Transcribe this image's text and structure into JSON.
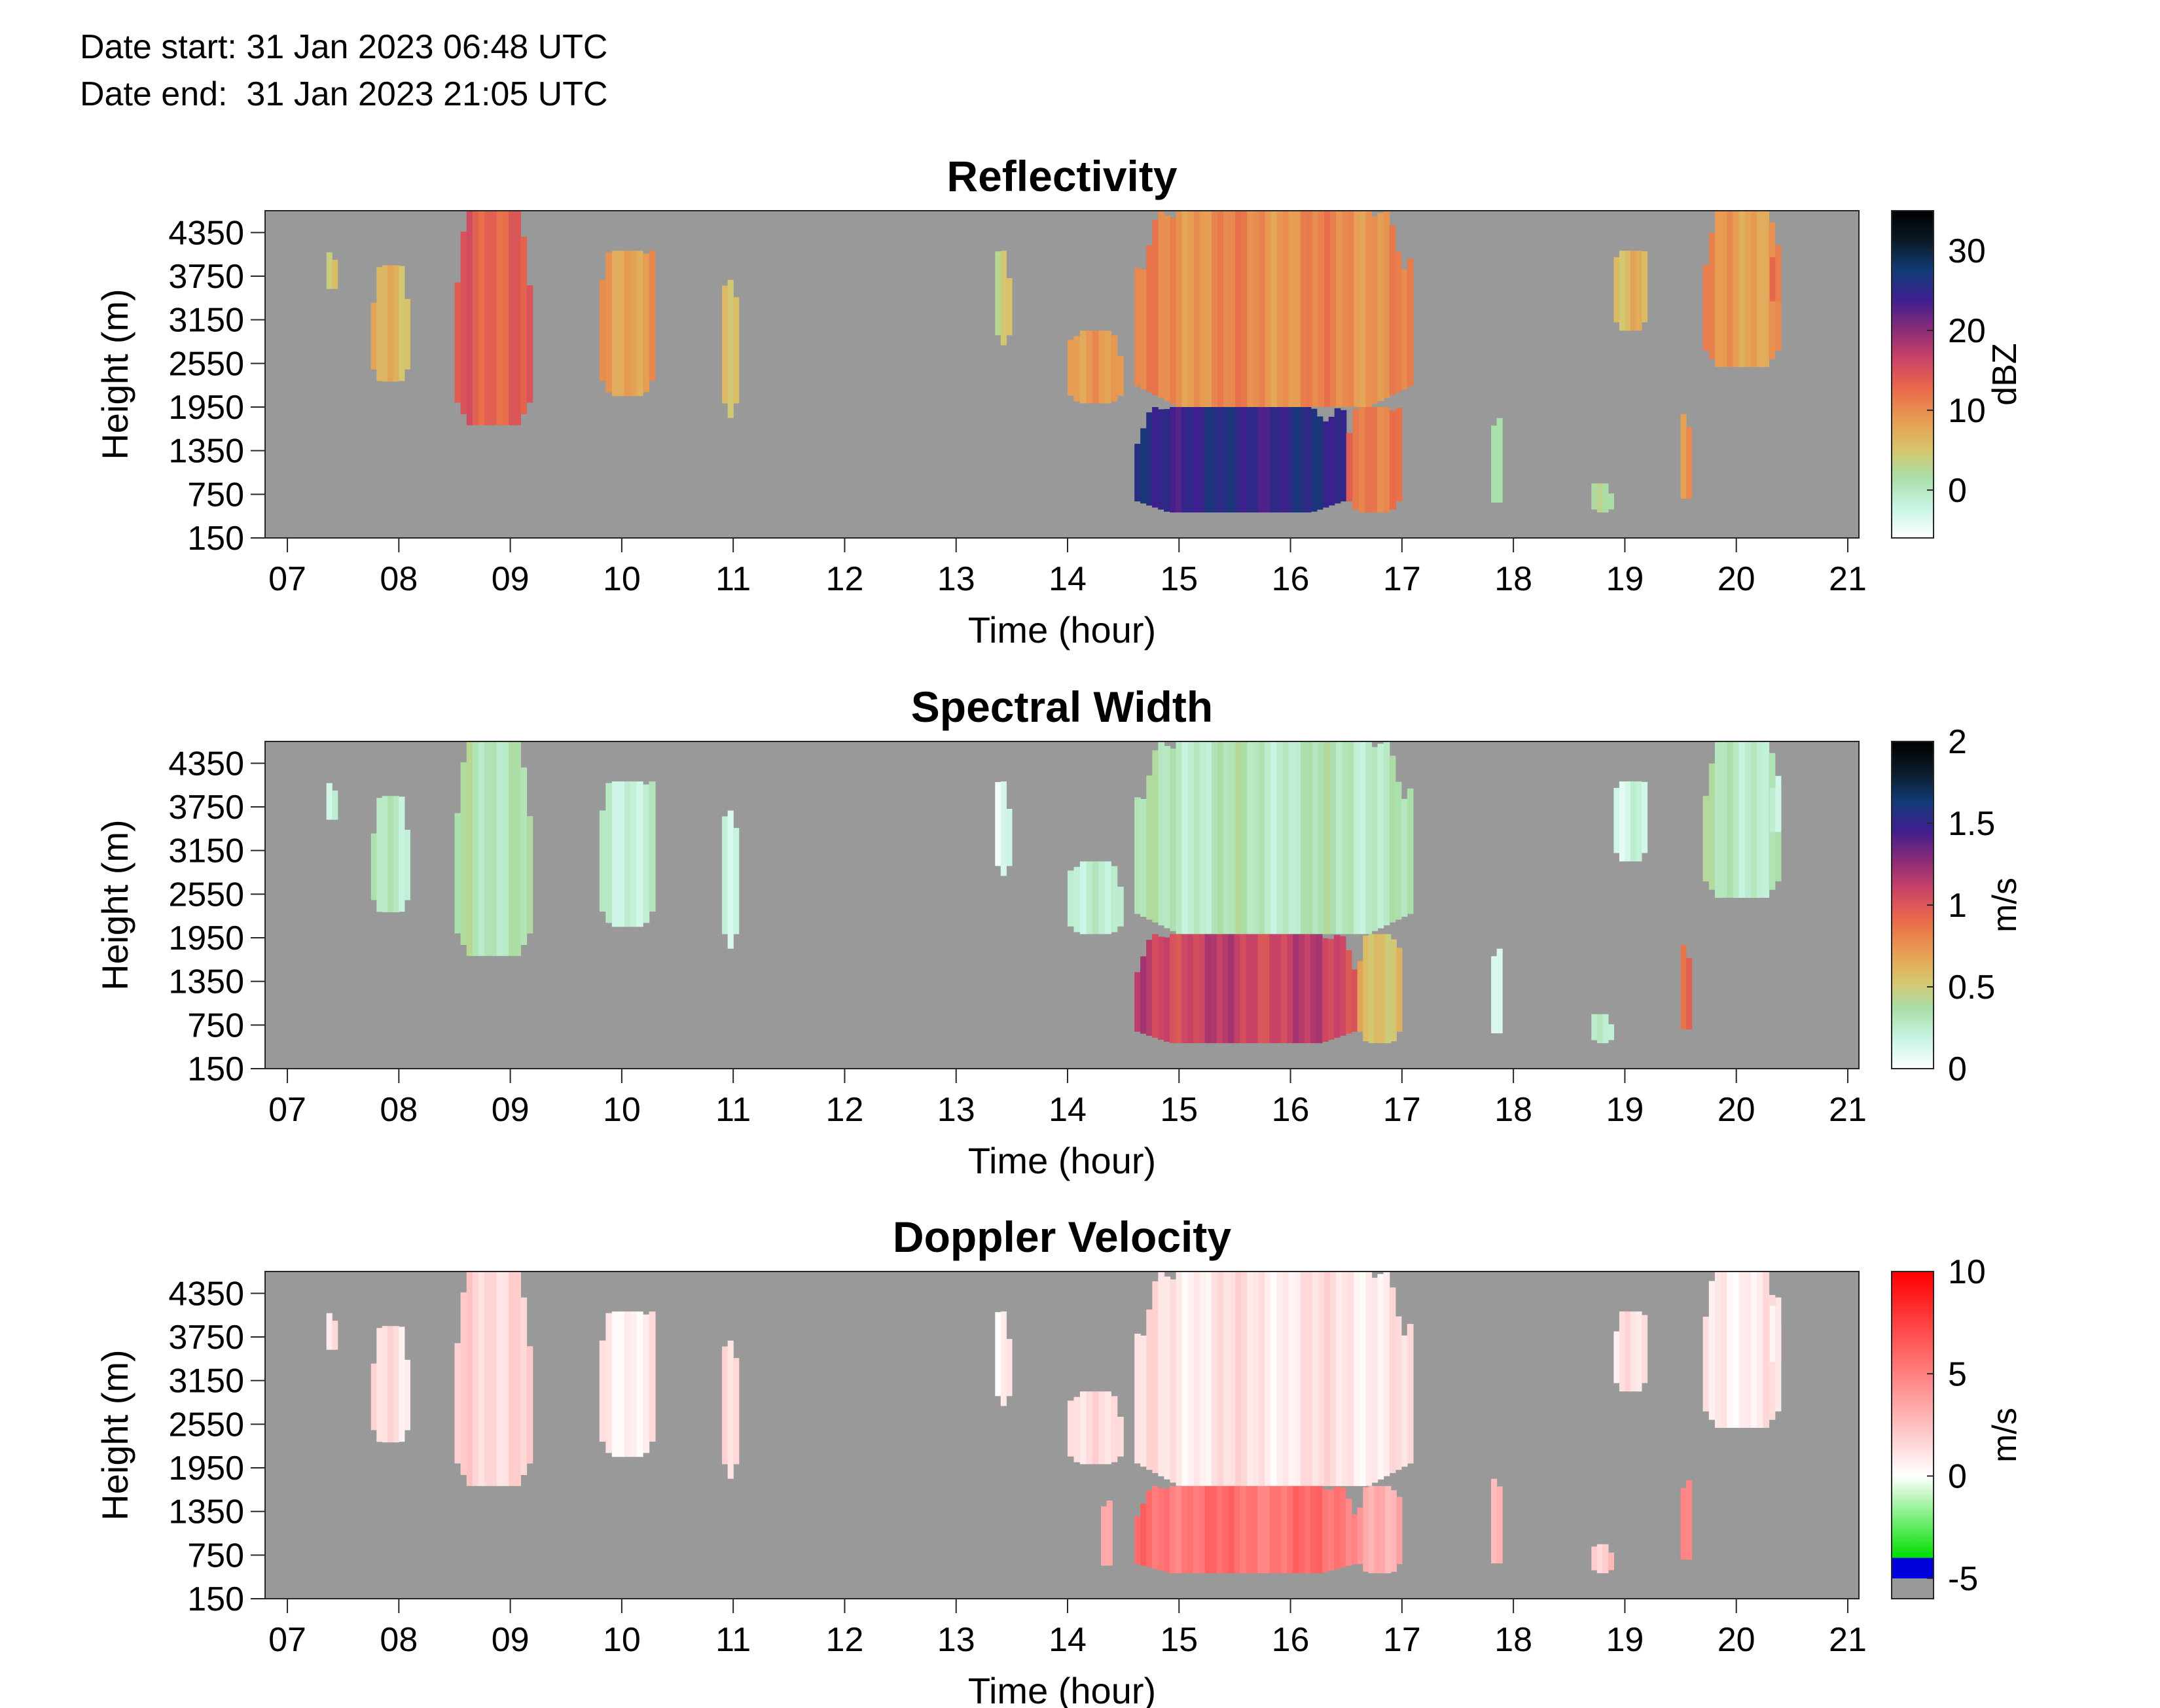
{
  "header": {
    "date_start_label": "Date start:",
    "date_start": "31 Jan 2023 06:48 UTC",
    "date_end_label": "Date end:",
    "date_end": "31 Jan 2023 21:05 UTC"
  },
  "chart_data": [
    {
      "type": "heatmap",
      "title": "Reflectivity",
      "xlabel": "Time (hour)",
      "ylabel": "Height (m)",
      "xlim": [
        6.8,
        21.1
      ],
      "ylim": [
        150,
        4650
      ],
      "x_ticks": [
        "07",
        "08",
        "09",
        "10",
        "11",
        "12",
        "13",
        "14",
        "15",
        "16",
        "17",
        "18",
        "19",
        "20",
        "21"
      ],
      "y_ticks": [
        "150",
        "750",
        "1350",
        "1950",
        "2550",
        "3150",
        "3750",
        "4350"
      ],
      "colorbar": {
        "label": "dBZ",
        "range": [
          -6,
          35
        ],
        "ticks": [
          "0",
          "10",
          "20",
          "30"
        ],
        "colors": [
          "#ffffff",
          "#c8f5e4",
          "#a9dfa9",
          "#d8c46a",
          "#e89a52",
          "#e86a4a",
          "#cc4466",
          "#8a2b77",
          "#3e1f8f",
          "#113b77",
          "#0a1a25",
          "#000000"
        ]
      },
      "background": "#999999",
      "echo_regions": [
        {
          "t": [
            7.35,
            7.45
          ],
          "h": [
            3500,
            4200
          ],
          "value": 4
        },
        {
          "t": [
            7.75,
            8.1
          ],
          "h": [
            2300,
            3900
          ],
          "value": 6
        },
        {
          "t": [
            8.5,
            9.2
          ],
          "h": [
            1700,
            4650
          ],
          "value": 14
        },
        {
          "t": [
            9.8,
            10.3
          ],
          "h": [
            2100,
            4100
          ],
          "value": 9
        },
        {
          "t": [
            10.9,
            11.05
          ],
          "h": [
            1800,
            3700
          ],
          "value": 7
        },
        {
          "t": [
            13.35,
            13.5
          ],
          "h": [
            2800,
            4100
          ],
          "value": 5
        },
        {
          "t": [
            14.0,
            14.5
          ],
          "h": [
            2000,
            3000
          ],
          "value": 8
        },
        {
          "t": [
            14.6,
            17.1
          ],
          "h": [
            1950,
            4650
          ],
          "value": 10
        },
        {
          "t": [
            14.6,
            16.5
          ],
          "h": [
            500,
            1950
          ],
          "value": 25
        },
        {
          "t": [
            16.5,
            17.0
          ],
          "h": [
            500,
            1950
          ],
          "value": 12
        },
        {
          "t": [
            17.8,
            17.9
          ],
          "h": [
            500,
            1800
          ],
          "value": 3
        },
        {
          "t": [
            18.7,
            18.9
          ],
          "h": [
            500,
            900
          ],
          "value": 3
        },
        {
          "t": [
            18.9,
            19.2
          ],
          "h": [
            3000,
            4100
          ],
          "value": 6
        },
        {
          "t": [
            19.5,
            19.6
          ],
          "h": [
            500,
            2300
          ],
          "value": 9
        },
        {
          "t": [
            19.7,
            20.4
          ],
          "h": [
            2500,
            4650
          ],
          "value": 9
        },
        {
          "t": [
            20.3,
            20.4
          ],
          "h": [
            3300,
            4300
          ],
          "value": 12
        }
      ]
    },
    {
      "type": "heatmap",
      "title": "Spectral Width",
      "xlabel": "Time (hour)",
      "ylabel": "Height (m)",
      "xlim": [
        6.8,
        21.1
      ],
      "ylim": [
        150,
        4650
      ],
      "x_ticks": [
        "07",
        "08",
        "09",
        "10",
        "11",
        "12",
        "13",
        "14",
        "15",
        "16",
        "17",
        "18",
        "19",
        "20",
        "21"
      ],
      "y_ticks": [
        "150",
        "750",
        "1350",
        "1950",
        "2550",
        "3150",
        "3750",
        "4350"
      ],
      "colorbar": {
        "label": "m/s",
        "range": [
          0,
          2
        ],
        "ticks": [
          "0",
          "0.5",
          "1",
          "1.5",
          "2"
        ],
        "colors": [
          "#ffffff",
          "#c8f5e4",
          "#a9dfa9",
          "#d8c46a",
          "#e89a52",
          "#e86a4a",
          "#cc4466",
          "#8a2b77",
          "#3e1f8f",
          "#113b77",
          "#0a1a25",
          "#000000"
        ]
      },
      "background": "#999999",
      "echo_regions": [
        {
          "t": [
            7.35,
            7.45
          ],
          "h": [
            3500,
            4200
          ],
          "value": 0.15
        },
        {
          "t": [
            7.75,
            8.1
          ],
          "h": [
            2300,
            3900
          ],
          "value": 0.25
        },
        {
          "t": [
            8.5,
            9.2
          ],
          "h": [
            1700,
            4650
          ],
          "value": 0.35
        },
        {
          "t": [
            9.8,
            10.3
          ],
          "h": [
            2100,
            4100
          ],
          "value": 0.25
        },
        {
          "t": [
            10.9,
            11.05
          ],
          "h": [
            1800,
            3700
          ],
          "value": 0.25
        },
        {
          "t": [
            13.35,
            13.5
          ],
          "h": [
            2800,
            4100
          ],
          "value": 0.15
        },
        {
          "t": [
            14.0,
            14.5
          ],
          "h": [
            2000,
            3000
          ],
          "value": 0.2
        },
        {
          "t": [
            14.6,
            17.1
          ],
          "h": [
            2000,
            4650
          ],
          "value": 0.3
        },
        {
          "t": [
            14.6,
            16.6
          ],
          "h": [
            500,
            2000
          ],
          "value": 1.1
        },
        {
          "t": [
            16.6,
            17.0
          ],
          "h": [
            500,
            2000
          ],
          "value": 0.6
        },
        {
          "t": [
            17.8,
            17.9
          ],
          "h": [
            500,
            1800
          ],
          "value": 0.2
        },
        {
          "t": [
            18.7,
            18.9
          ],
          "h": [
            500,
            900
          ],
          "value": 0.3
        },
        {
          "t": [
            18.9,
            19.2
          ],
          "h": [
            3000,
            4100
          ],
          "value": 0.15
        },
        {
          "t": [
            19.5,
            19.6
          ],
          "h": [
            500,
            2300
          ],
          "value": 0.9
        },
        {
          "t": [
            19.7,
            20.4
          ],
          "h": [
            2500,
            4650
          ],
          "value": 0.3
        },
        {
          "t": [
            20.3,
            20.4
          ],
          "h": [
            3300,
            4300
          ],
          "value": 0.2
        }
      ]
    },
    {
      "type": "heatmap",
      "title": "Doppler Velocity",
      "xlabel": "Time (hour)",
      "ylabel": "Height (m)",
      "xlim": [
        6.8,
        21.1
      ],
      "ylim": [
        150,
        4650
      ],
      "x_ticks": [
        "07",
        "08",
        "09",
        "10",
        "11",
        "12",
        "13",
        "14",
        "15",
        "16",
        "17",
        "18",
        "19",
        "20",
        "21"
      ],
      "y_ticks": [
        "150",
        "750",
        "1350",
        "1950",
        "2550",
        "3150",
        "3750",
        "4350"
      ],
      "colorbar": {
        "label": "m/s",
        "range": [
          -6,
          10
        ],
        "ticks": [
          "-5",
          "0",
          "5",
          "10"
        ],
        "stops": [
          {
            "v": -6,
            "c": "#999999"
          },
          {
            "v": -5.01,
            "c": "#999999"
          },
          {
            "v": -5,
            "c": "#0000dd"
          },
          {
            "v": -4.01,
            "c": "#0000dd"
          },
          {
            "v": -4,
            "c": "#00dd00"
          },
          {
            "v": 0,
            "c": "#ffffff"
          },
          {
            "v": 10,
            "c": "#ff0000"
          }
        ]
      },
      "background": "#999999",
      "echo_regions": [
        {
          "t": [
            7.35,
            7.45
          ],
          "h": [
            3500,
            4200
          ],
          "value": 0.8
        },
        {
          "t": [
            7.75,
            8.1
          ],
          "h": [
            2300,
            3900
          ],
          "value": 1.0
        },
        {
          "t": [
            8.5,
            9.2
          ],
          "h": [
            1700,
            4650
          ],
          "value": 1.8
        },
        {
          "t": [
            9.8,
            10.3
          ],
          "h": [
            2100,
            4100
          ],
          "value": 0.9
        },
        {
          "t": [
            10.9,
            11.05
          ],
          "h": [
            1800,
            3700
          ],
          "value": 2.0
        },
        {
          "t": [
            13.35,
            13.5
          ],
          "h": [
            2800,
            4100
          ],
          "value": 0.9
        },
        {
          "t": [
            14.0,
            14.5
          ],
          "h": [
            2000,
            3000
          ],
          "value": 1.0
        },
        {
          "t": [
            14.6,
            17.1
          ],
          "h": [
            1700,
            4650
          ],
          "value": 1.0
        },
        {
          "t": [
            14.6,
            16.6
          ],
          "h": [
            500,
            1700
          ],
          "value": 5.5
        },
        {
          "t": [
            16.6,
            17.0
          ],
          "h": [
            500,
            1700
          ],
          "value": 3.5
        },
        {
          "t": [
            14.3,
            14.4
          ],
          "h": [
            500,
            1500
          ],
          "value": 4.0
        },
        {
          "t": [
            17.8,
            17.9
          ],
          "h": [
            500,
            1800
          ],
          "value": 3.0
        },
        {
          "t": [
            18.7,
            18.9
          ],
          "h": [
            500,
            900
          ],
          "value": 2.0
        },
        {
          "t": [
            18.9,
            19.2
          ],
          "h": [
            3000,
            4100
          ],
          "value": 0.8
        },
        {
          "t": [
            19.5,
            19.6
          ],
          "h": [
            500,
            2300
          ],
          "value": 4.0
        },
        {
          "t": [
            19.7,
            20.4
          ],
          "h": [
            2500,
            4650
          ],
          "value": 0.9
        },
        {
          "t": [
            20.3,
            20.4
          ],
          "h": [
            3300,
            4300
          ],
          "value": 0.9
        }
      ]
    }
  ]
}
